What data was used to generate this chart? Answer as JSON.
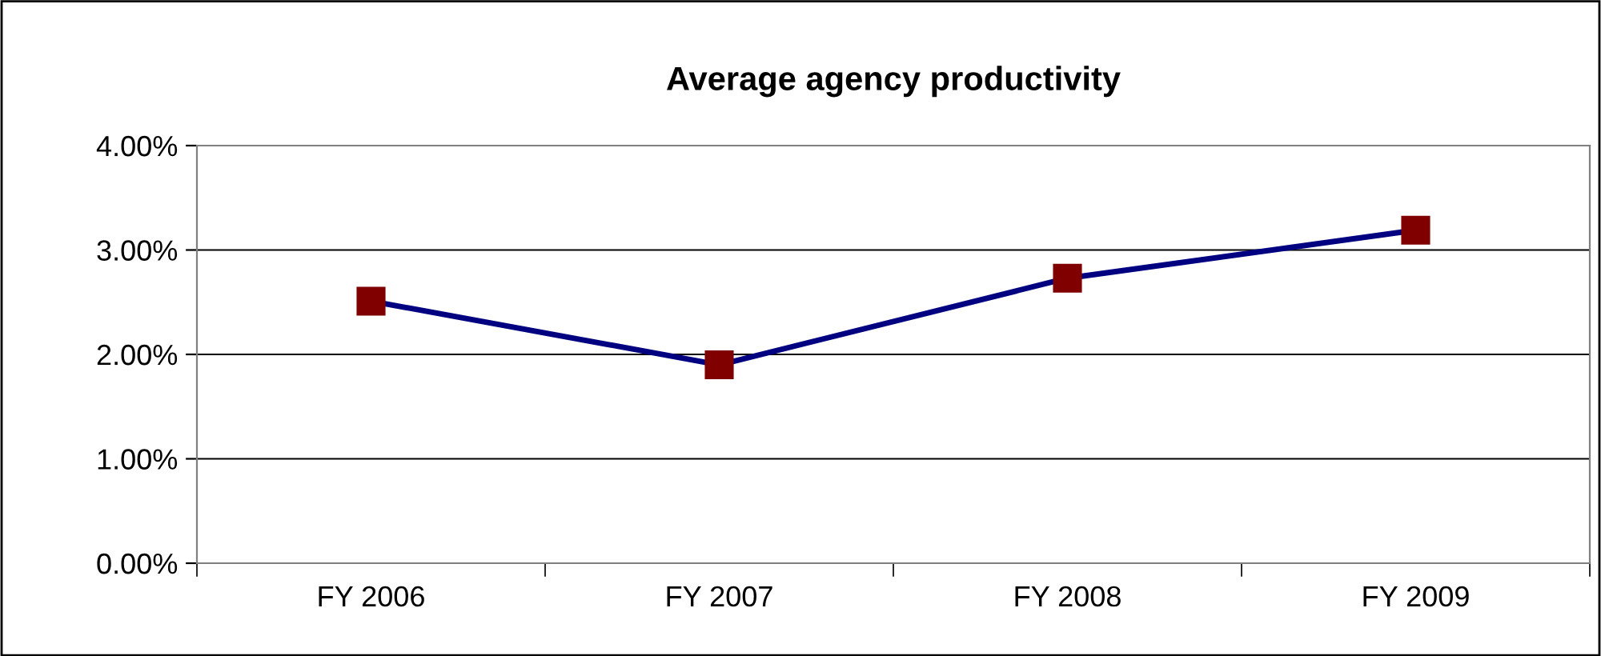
{
  "chart_data": {
    "type": "line",
    "title": "Average agency productivity",
    "categories": [
      "FY 2006",
      "FY 2007",
      "FY 2008",
      "FY 2009"
    ],
    "series": [
      {
        "color": "#000080",
        "colors": [
          "#800000",
          "#800000",
          "#800000",
          "#800000"
        ],
        "values": [
          2.51,
          1.9,
          2.73,
          3.19
        ]
      }
    ],
    "ylim": [
      0,
      4
    ],
    "yticks": [
      {
        "value": 0,
        "label": "0.00%"
      },
      {
        "value": 1,
        "label": "1.00%"
      },
      {
        "value": 2,
        "label": "2.00%"
      },
      {
        "value": 3,
        "label": "3.00%"
      },
      {
        "value": 4,
        "label": "4.00%"
      }
    ],
    "grid": "y",
    "marker": "square",
    "line_style": "solid",
    "legend": false
  }
}
